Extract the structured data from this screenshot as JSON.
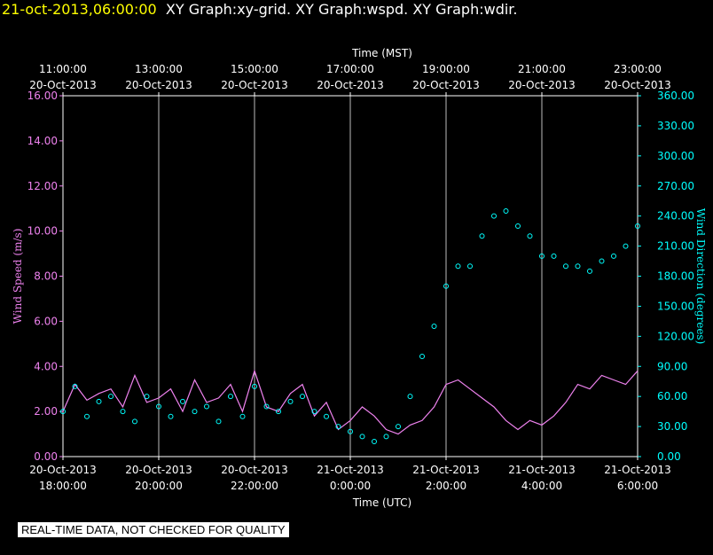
{
  "header": {
    "timestamp": "21-oct-2013,06:00:00",
    "graphs": "XY Graph:xy-grid.  XY Graph:wspd.  XY Graph:wdir."
  },
  "colors": {
    "speed": "#ee82ee",
    "direction": "#00ffff",
    "axis": "#ffffff",
    "header": "#ffff00"
  },
  "notice": "REAL-TIME DATA, NOT CHECKED FOR QUALITY",
  "chart_data": {
    "type": "line",
    "x_unit": "hours (20-Oct-2013 18:00 UTC to 21-Oct-2013 6:00 UTC)",
    "xlim": [
      0,
      12
    ],
    "top_axis_label": "Time (MST)",
    "bottom_axis_label": "Time (UTC)",
    "top_ticks": [
      {
        "x": 0,
        "time": "11:00:00",
        "date": "20-Oct-2013"
      },
      {
        "x": 2,
        "time": "13:00:00",
        "date": "20-Oct-2013"
      },
      {
        "x": 4,
        "time": "15:00:00",
        "date": "20-Oct-2013"
      },
      {
        "x": 6,
        "time": "17:00:00",
        "date": "20-Oct-2013"
      },
      {
        "x": 8,
        "time": "19:00:00",
        "date": "20-Oct-2013"
      },
      {
        "x": 10,
        "time": "21:00:00",
        "date": "20-Oct-2013"
      },
      {
        "x": 12,
        "time": "23:00:00",
        "date": "20-Oct-2013"
      }
    ],
    "bottom_ticks": [
      {
        "x": 0,
        "date": "20-Oct-2013",
        "time": "18:00:00"
      },
      {
        "x": 2,
        "date": "20-Oct-2013",
        "time": "20:00:00"
      },
      {
        "x": 4,
        "date": "20-Oct-2013",
        "time": "22:00:00"
      },
      {
        "x": 6,
        "date": "21-Oct-2013",
        "time": "0:00:00"
      },
      {
        "x": 8,
        "date": "21-Oct-2013",
        "time": "2:00:00"
      },
      {
        "x": 10,
        "date": "21-Oct-2013",
        "time": "4:00:00"
      },
      {
        "x": 12,
        "date": "21-Oct-2013",
        "time": "6:00:00"
      }
    ],
    "y_left": {
      "label": "Wind Speed (m/s)",
      "ylim": [
        0,
        16
      ],
      "ticks": [
        "0.00",
        "2.00",
        "4.00",
        "6.00",
        "8.00",
        "10.00",
        "12.00",
        "14.00",
        "16.00"
      ]
    },
    "y_right": {
      "label": "Wind Direction (degrees)",
      "ylim": [
        0,
        360
      ],
      "ticks": [
        "0.00",
        "30.00",
        "60.00",
        "90.00",
        "120.00",
        "150.00",
        "180.00",
        "210.00",
        "240.00",
        "270.00",
        "300.00",
        "330.00",
        "360.00"
      ]
    },
    "grid": "vertical",
    "series": [
      {
        "axis": "left",
        "style": "line",
        "x": [
          0,
          0.25,
          0.5,
          0.75,
          1,
          1.25,
          1.5,
          1.75,
          2,
          2.25,
          2.5,
          2.75,
          3,
          3.25,
          3.5,
          3.75,
          4,
          4.25,
          4.5,
          4.75,
          5,
          5.25,
          5.5,
          5.75,
          6,
          6.25,
          6.5,
          6.75,
          7,
          7.25,
          7.5,
          7.75,
          8,
          8.25,
          8.5,
          8.75,
          9,
          9.25,
          9.5,
          9.75,
          10,
          10.25,
          10.5,
          10.75,
          11,
          11.25,
          11.5,
          11.75,
          12
        ],
        "y": [
          2.0,
          3.2,
          2.5,
          2.8,
          3.0,
          2.2,
          3.6,
          2.4,
          2.6,
          3.0,
          2.0,
          3.4,
          2.4,
          2.6,
          3.2,
          2.0,
          3.8,
          2.2,
          2.0,
          2.8,
          3.2,
          1.8,
          2.4,
          1.2,
          1.6,
          2.2,
          1.8,
          1.2,
          1.0,
          1.4,
          1.6,
          2.2,
          3.2,
          3.4,
          3.0,
          2.6,
          2.2,
          1.6,
          1.2,
          1.6,
          1.4,
          1.8,
          2.4,
          3.2,
          3.0,
          3.6,
          3.4,
          3.2,
          3.8
        ]
      },
      {
        "axis": "right",
        "style": "points",
        "x": [
          0,
          0.25,
          0.5,
          0.75,
          1,
          1.25,
          1.5,
          1.75,
          2,
          2.25,
          2.5,
          2.75,
          3,
          3.25,
          3.5,
          3.75,
          4,
          4.25,
          4.5,
          4.75,
          5,
          5.25,
          5.5,
          5.75,
          6,
          6.25,
          6.5,
          6.75,
          7,
          7.25,
          7.5,
          7.75,
          8,
          8.25,
          8.5,
          8.75,
          9,
          9.25,
          9.5,
          9.75,
          10,
          10.25,
          10.5,
          10.75,
          11,
          11.25,
          11.5,
          11.75,
          12
        ],
        "y": [
          45,
          70,
          40,
          55,
          60,
          45,
          35,
          60,
          50,
          40,
          55,
          45,
          50,
          35,
          60,
          40,
          70,
          50,
          45,
          55,
          60,
          45,
          40,
          30,
          25,
          20,
          15,
          20,
          30,
          60,
          100,
          130,
          170,
          190,
          190,
          220,
          240,
          245,
          230,
          220,
          200,
          200,
          190,
          190,
          185,
          195,
          200,
          210,
          230
        ]
      }
    ]
  }
}
